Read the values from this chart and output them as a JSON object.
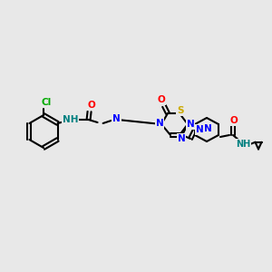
{
  "background_color": "#e8e8e8",
  "bond_color": "#000000",
  "bond_width": 1.5,
  "atom_colors": {
    "N": "#0000ff",
    "O": "#ff0000",
    "S": "#ccaa00",
    "Cl": "#00aa00",
    "C": "#000000",
    "NH": "#008080",
    "NH2": "#008080"
  },
  "font_size": 7.5,
  "font_size_small": 6.5
}
